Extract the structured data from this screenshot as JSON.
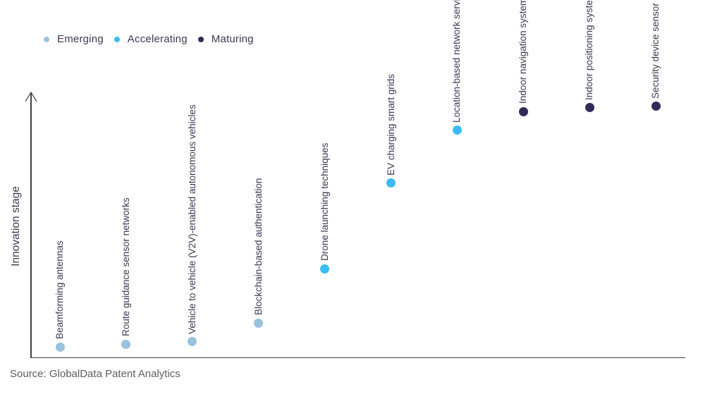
{
  "legend": {
    "items": [
      {
        "label": "Emerging",
        "stage": "emerging",
        "color": "#9ac2dc"
      },
      {
        "label": "Accelerating",
        "stage": "accelerating",
        "color": "#3bbcf4"
      },
      {
        "label": "Maturing",
        "stage": "maturing",
        "color": "#332a58"
      }
    ]
  },
  "y_axis": {
    "label": "Innovation stage"
  },
  "source": {
    "text": "Source: GlobalData Patent Analytics"
  },
  "chart_data": {
    "type": "scatter",
    "title": "",
    "xlabel": "",
    "ylabel": "Innovation stage",
    "ylim": [
      0,
      100
    ],
    "grid": false,
    "legend_position": "top-left",
    "stage_colors": {
      "emerging": "#9ac2dc",
      "accelerating": "#3bbcf4",
      "maturing": "#332a58"
    },
    "points": [
      {
        "label": "Beamforming antennas",
        "stage": "emerging",
        "x": 1,
        "innovation_score": 4
      },
      {
        "label": "Route guidance sensor networks",
        "stage": "emerging",
        "x": 2,
        "innovation_score": 5
      },
      {
        "label": "Vehicle to vehicle (V2V)-enabled autonomous vehicles",
        "stage": "emerging",
        "x": 3,
        "innovation_score": 6
      },
      {
        "label": "Blockchain-based authentication",
        "stage": "emerging",
        "x": 4,
        "innovation_score": 13
      },
      {
        "label": "Drone launching techniques",
        "stage": "accelerating",
        "x": 5,
        "innovation_score": 33.5
      },
      {
        "label": "EV charging smart grids",
        "stage": "accelerating",
        "x": 6,
        "innovation_score": 66
      },
      {
        "label": "Location-based network services",
        "stage": "accelerating",
        "x": 7,
        "innovation_score": 86
      },
      {
        "label": "Indoor navigation systems",
        "stage": "maturing",
        "x": 8,
        "innovation_score": 93
      },
      {
        "label": "Indoor positioning systems",
        "stage": "maturing",
        "x": 9,
        "innovation_score": 94.5
      },
      {
        "label": "Security device sensor networks",
        "stage": "maturing",
        "x": 10,
        "innovation_score": 95
      }
    ]
  }
}
